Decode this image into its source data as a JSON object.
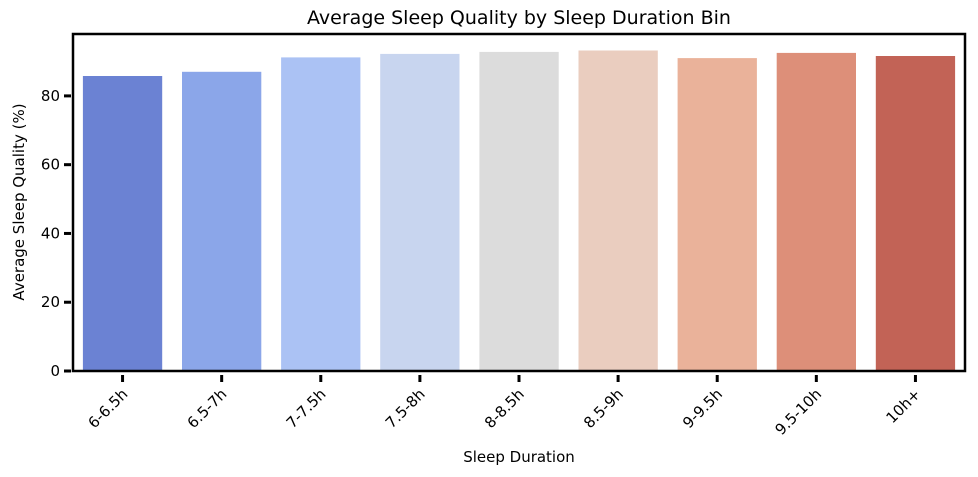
{
  "chart_data": {
    "type": "bar",
    "title": "Average Sleep Quality by Sleep Duration Bin",
    "xlabel": "Sleep Duration",
    "ylabel": "Average Sleep Quality (%)",
    "categories": [
      "6-6.5h",
      "6.5-7h",
      "7-7.5h",
      "7.5-8h",
      "8-8.5h",
      "8.5-9h",
      "9-9.5h",
      "9.5-10h",
      "10h+"
    ],
    "values": [
      85.8,
      87.0,
      91.2,
      92.2,
      92.8,
      93.2,
      91.0,
      92.5,
      91.6
    ],
    "colors": [
      "#6b82d3",
      "#8ba6e9",
      "#abc2f4",
      "#c8d5ef",
      "#dcdcdc",
      "#eacdbf",
      "#eab29a",
      "#dd8f79",
      "#c26356"
    ],
    "ylim": [
      0,
      98
    ],
    "yticks": [
      0,
      20,
      40,
      60,
      80
    ],
    "grid": false,
    "legend": "none"
  }
}
